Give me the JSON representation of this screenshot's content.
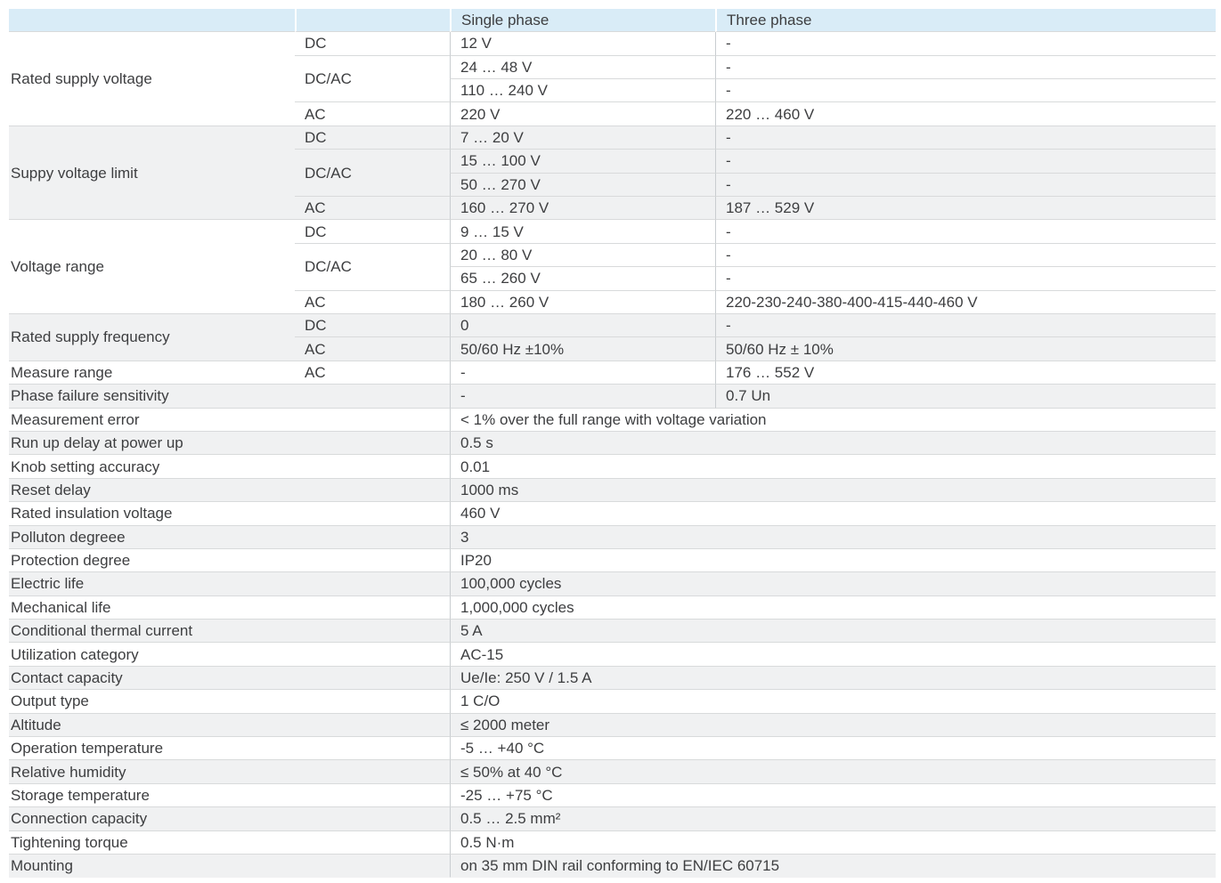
{
  "colors": {
    "header_bg": "#d9ecf7",
    "shade_bg": "#f0f1f2",
    "border_h": "#d8dadb",
    "border_v": "#c9cdd0",
    "text": "#3d3e40"
  },
  "table": {
    "header": {
      "param": "",
      "type": "",
      "single_phase": "Single phase",
      "three_phase": "Three phase"
    },
    "rows": [
      {
        "bg": "w",
        "cells": [
          {
            "t": "Rated supply voltage",
            "c": 0,
            "rs": 4
          },
          {
            "t": "DC",
            "c": 1
          },
          {
            "t": "12 V",
            "c": 2
          },
          {
            "t": "-",
            "c": 3
          }
        ]
      },
      {
        "bg": "w",
        "cells": [
          {
            "t": "DC/AC",
            "c": 1,
            "rs": 2
          },
          {
            "t": "24 … 48 V",
            "c": 2
          },
          {
            "t": "-",
            "c": 3
          }
        ]
      },
      {
        "bg": "w",
        "cells": [
          {
            "t": "110 … 240 V",
            "c": 2
          },
          {
            "t": "-",
            "c": 3
          }
        ]
      },
      {
        "bg": "w",
        "cells": [
          {
            "t": "AC",
            "c": 1
          },
          {
            "t": "220 V",
            "c": 2
          },
          {
            "t": "220 … 460 V",
            "c": 3
          }
        ]
      },
      {
        "bg": "g",
        "cells": [
          {
            "t": "Suppy voltage limit",
            "c": 0,
            "rs": 4
          },
          {
            "t": "DC",
            "c": 1
          },
          {
            "t": "7 … 20 V",
            "c": 2
          },
          {
            "t": "-",
            "c": 3
          }
        ]
      },
      {
        "bg": "g",
        "cells": [
          {
            "t": "DC/AC",
            "c": 1,
            "rs": 2
          },
          {
            "t": "15 … 100 V",
            "c": 2
          },
          {
            "t": "-",
            "c": 3
          }
        ]
      },
      {
        "bg": "g",
        "cells": [
          {
            "t": "50 … 270 V",
            "c": 2
          },
          {
            "t": "-",
            "c": 3
          }
        ]
      },
      {
        "bg": "g",
        "cells": [
          {
            "t": "AC",
            "c": 1
          },
          {
            "t": "160 … 270 V",
            "c": 2
          },
          {
            "t": "187 … 529 V",
            "c": 3
          }
        ]
      },
      {
        "bg": "w",
        "cells": [
          {
            "t": "Voltage range",
            "c": 0,
            "rs": 4
          },
          {
            "t": "DC",
            "c": 1
          },
          {
            "t": "9 … 15 V",
            "c": 2
          },
          {
            "t": "-",
            "c": 3
          }
        ]
      },
      {
        "bg": "w",
        "cells": [
          {
            "t": "DC/AC",
            "c": 1,
            "rs": 2
          },
          {
            "t": "20 … 80 V",
            "c": 2
          },
          {
            "t": "-",
            "c": 3
          }
        ]
      },
      {
        "bg": "w",
        "cells": [
          {
            "t": "65 … 260 V",
            "c": 2
          },
          {
            "t": "-",
            "c": 3
          }
        ]
      },
      {
        "bg": "w",
        "cells": [
          {
            "t": "AC",
            "c": 1
          },
          {
            "t": "180 … 260 V",
            "c": 2
          },
          {
            "t": "220-230-240-380-400-415-440-460 V",
            "c": 3
          }
        ]
      },
      {
        "bg": "g",
        "cells": [
          {
            "t": "Rated supply frequency",
            "c": 0,
            "rs": 2
          },
          {
            "t": "DC",
            "c": 1
          },
          {
            "t": "0",
            "c": 2
          },
          {
            "t": "-",
            "c": 3
          }
        ]
      },
      {
        "bg": "g",
        "cells": [
          {
            "t": "AC",
            "c": 1
          },
          {
            "t": "50/60 Hz ±10%",
            "c": 2
          },
          {
            "t": "50/60 Hz ± 10%",
            "c": 3
          }
        ]
      },
      {
        "bg": "w",
        "cells": [
          {
            "t": "Measure range",
            "c": 0
          },
          {
            "t": "AC",
            "c": 1
          },
          {
            "t": "-",
            "c": 2
          },
          {
            "t": "176 … 552 V",
            "c": 3
          }
        ]
      },
      {
        "bg": "g",
        "cells": [
          {
            "t": "Phase failure sensitivity",
            "c": 0,
            "cs": 2
          },
          {
            "t": "-",
            "c": 2
          },
          {
            "t": "0.7 Un",
            "c": 3
          }
        ]
      },
      {
        "bg": "w",
        "cells": [
          {
            "t": "Measurement error",
            "c": 0,
            "cs": 2
          },
          {
            "t": "< 1% over the full range with voltage variation",
            "c": 2,
            "cs": 2
          }
        ]
      },
      {
        "bg": "g",
        "cells": [
          {
            "t": "Run up delay at power up",
            "c": 0,
            "cs": 2
          },
          {
            "t": "0.5 s",
            "c": 2,
            "cs": 2
          }
        ]
      },
      {
        "bg": "w",
        "cells": [
          {
            "t": "Knob setting accuracy",
            "c": 0,
            "cs": 2
          },
          {
            "t": "0.01",
            "c": 2,
            "cs": 2
          }
        ]
      },
      {
        "bg": "g",
        "cells": [
          {
            "t": "Reset delay",
            "c": 0,
            "cs": 2
          },
          {
            "t": "1000 ms",
            "c": 2,
            "cs": 2
          }
        ]
      },
      {
        "bg": "w",
        "cells": [
          {
            "t": "Rated insulation voltage",
            "c": 0,
            "cs": 2
          },
          {
            "t": "460 V",
            "c": 2,
            "cs": 2
          }
        ]
      },
      {
        "bg": "g",
        "cells": [
          {
            "t": "Polluton degreee",
            "c": 0,
            "cs": 2
          },
          {
            "t": "3",
            "c": 2,
            "cs": 2
          }
        ]
      },
      {
        "bg": "w",
        "cells": [
          {
            "t": "Protection degree",
            "c": 0,
            "cs": 2
          },
          {
            "t": "IP20",
            "c": 2,
            "cs": 2
          }
        ]
      },
      {
        "bg": "g",
        "cells": [
          {
            "t": "Electric life",
            "c": 0,
            "cs": 2
          },
          {
            "t": "100,000 cycles",
            "c": 2,
            "cs": 2
          }
        ]
      },
      {
        "bg": "w",
        "cells": [
          {
            "t": "Mechanical life",
            "c": 0,
            "cs": 2
          },
          {
            "t": "1,000,000 cycles",
            "c": 2,
            "cs": 2
          }
        ]
      },
      {
        "bg": "g",
        "cells": [
          {
            "t": "Conditional thermal current",
            "c": 0,
            "cs": 2
          },
          {
            "t": "5 A",
            "c": 2,
            "cs": 2
          }
        ]
      },
      {
        "bg": "w",
        "cells": [
          {
            "t": "Utilization category",
            "c": 0,
            "cs": 2
          },
          {
            "t": "AC-15",
            "c": 2,
            "cs": 2
          }
        ]
      },
      {
        "bg": "g",
        "cells": [
          {
            "t": "Contact capacity",
            "c": 0,
            "cs": 2
          },
          {
            "t": "Ue/Ie: 250 V / 1.5 A",
            "c": 2,
            "cs": 2
          }
        ]
      },
      {
        "bg": "w",
        "cells": [
          {
            "t": "Output type",
            "c": 0,
            "cs": 2
          },
          {
            "t": "1 C/O",
            "c": 2,
            "cs": 2
          }
        ]
      },
      {
        "bg": "g",
        "cells": [
          {
            "t": "Altitude",
            "c": 0,
            "cs": 2
          },
          {
            "t": "≤ 2000 meter",
            "c": 2,
            "cs": 2
          }
        ]
      },
      {
        "bg": "w",
        "cells": [
          {
            "t": "Operation temperature",
            "c": 0,
            "cs": 2
          },
          {
            "t": "-5 … +40 °C",
            "c": 2,
            "cs": 2
          }
        ]
      },
      {
        "bg": "g",
        "cells": [
          {
            "t": "Relative humidity",
            "c": 0,
            "cs": 2
          },
          {
            "t": "≤ 50% at 40 °C",
            "c": 2,
            "cs": 2
          }
        ]
      },
      {
        "bg": "w",
        "cells": [
          {
            "t": "Storage temperature",
            "c": 0,
            "cs": 2
          },
          {
            "t": "-25 … +75 °C",
            "c": 2,
            "cs": 2
          }
        ]
      },
      {
        "bg": "g",
        "cells": [
          {
            "t": "Connection capacity",
            "c": 0,
            "cs": 2
          },
          {
            "t": "0.5 … 2.5 mm²",
            "c": 2,
            "cs": 2
          }
        ]
      },
      {
        "bg": "w",
        "cells": [
          {
            "t": "Tightening torque",
            "c": 0,
            "cs": 2
          },
          {
            "t": "0.5 N·m",
            "c": 2,
            "cs": 2
          }
        ]
      },
      {
        "bg": "g",
        "cells": [
          {
            "t": "Mounting",
            "c": 0,
            "cs": 2
          },
          {
            "t": "on 35 mm DIN rail conforming to EN/IEC 60715",
            "c": 2,
            "cs": 2
          }
        ]
      }
    ]
  }
}
